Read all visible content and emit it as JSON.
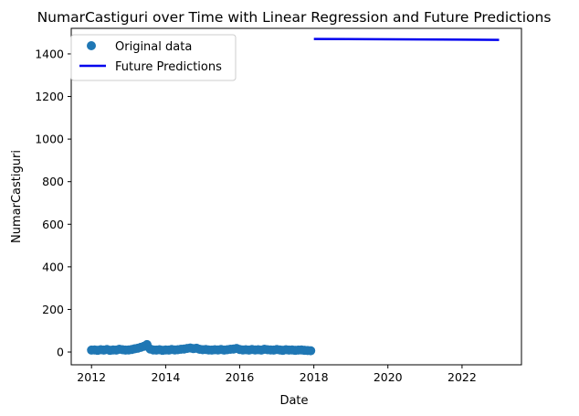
{
  "chart_data": {
    "type": "scatter",
    "title": "NumarCastiguri over Time with Linear Regression and Future Predictions",
    "xlabel": "Date",
    "ylabel": "NumarCastiguri",
    "x_scale": "date",
    "xlim": [
      "2011-06-15",
      "2023-08-10"
    ],
    "ylim": [
      -60,
      1520
    ],
    "x_ticks": [
      "2012",
      "2014",
      "2016",
      "2018",
      "2020",
      "2022"
    ],
    "y_ticks": [
      0,
      200,
      400,
      600,
      800,
      1000,
      1200,
      1400
    ],
    "grid": false,
    "legend_placement": "upper-left",
    "colors": {
      "original": "#1f77b4",
      "predictions": "#0000ee"
    },
    "series": [
      {
        "name": "Original data",
        "kind": "scatter",
        "points": [
          [
            "2012-01-01",
            9
          ],
          [
            "2012-02-01",
            10
          ],
          [
            "2012-03-01",
            8
          ],
          [
            "2012-04-01",
            11
          ],
          [
            "2012-05-01",
            9
          ],
          [
            "2012-06-01",
            12
          ],
          [
            "2012-07-01",
            8
          ],
          [
            "2012-08-01",
            10
          ],
          [
            "2012-09-01",
            9
          ],
          [
            "2012-10-01",
            13
          ],
          [
            "2012-11-01",
            11
          ],
          [
            "2012-12-01",
            9
          ],
          [
            "2013-01-01",
            10
          ],
          [
            "2013-02-01",
            12
          ],
          [
            "2013-03-01",
            15
          ],
          [
            "2013-04-01",
            18
          ],
          [
            "2013-05-01",
            22
          ],
          [
            "2013-06-01",
            27
          ],
          [
            "2013-07-01",
            35
          ],
          [
            "2013-08-01",
            14
          ],
          [
            "2013-09-01",
            10
          ],
          [
            "2013-10-01",
            9
          ],
          [
            "2013-11-01",
            11
          ],
          [
            "2013-12-01",
            8
          ],
          [
            "2014-01-01",
            10
          ],
          [
            "2014-02-01",
            9
          ],
          [
            "2014-03-01",
            12
          ],
          [
            "2014-04-01",
            10
          ],
          [
            "2014-05-01",
            11
          ],
          [
            "2014-06-01",
            13
          ],
          [
            "2014-07-01",
            14
          ],
          [
            "2014-08-01",
            17
          ],
          [
            "2014-09-01",
            19
          ],
          [
            "2014-10-01",
            16
          ],
          [
            "2014-11-01",
            18
          ],
          [
            "2014-12-01",
            13
          ],
          [
            "2015-01-01",
            11
          ],
          [
            "2015-02-01",
            12
          ],
          [
            "2015-03-01",
            10
          ],
          [
            "2015-04-01",
            9
          ],
          [
            "2015-05-01",
            11
          ],
          [
            "2015-06-01",
            10
          ],
          [
            "2015-07-01",
            12
          ],
          [
            "2015-08-01",
            9
          ],
          [
            "2015-09-01",
            11
          ],
          [
            "2015-10-01",
            13
          ],
          [
            "2015-11-01",
            14
          ],
          [
            "2015-12-01",
            17
          ],
          [
            "2016-01-01",
            12
          ],
          [
            "2016-02-01",
            10
          ],
          [
            "2016-03-01",
            11
          ],
          [
            "2016-04-01",
            9
          ],
          [
            "2016-05-01",
            12
          ],
          [
            "2016-06-01",
            10
          ],
          [
            "2016-07-01",
            11
          ],
          [
            "2016-08-01",
            9
          ],
          [
            "2016-09-01",
            13
          ],
          [
            "2016-10-01",
            11
          ],
          [
            "2016-11-01",
            10
          ],
          [
            "2016-12-01",
            9
          ],
          [
            "2017-01-01",
            12
          ],
          [
            "2017-02-01",
            10
          ],
          [
            "2017-03-01",
            8
          ],
          [
            "2017-04-01",
            11
          ],
          [
            "2017-05-01",
            9
          ],
          [
            "2017-06-01",
            10
          ],
          [
            "2017-07-01",
            8
          ],
          [
            "2017-08-01",
            9
          ],
          [
            "2017-09-01",
            10
          ],
          [
            "2017-10-01",
            8
          ],
          [
            "2017-11-01",
            7
          ],
          [
            "2017-12-01",
            6
          ]
        ]
      },
      {
        "name": "Future Predictions",
        "kind": "line",
        "points": [
          [
            "2018-01-01",
            1470
          ],
          [
            "2023-01-01",
            1466
          ]
        ]
      }
    ]
  }
}
